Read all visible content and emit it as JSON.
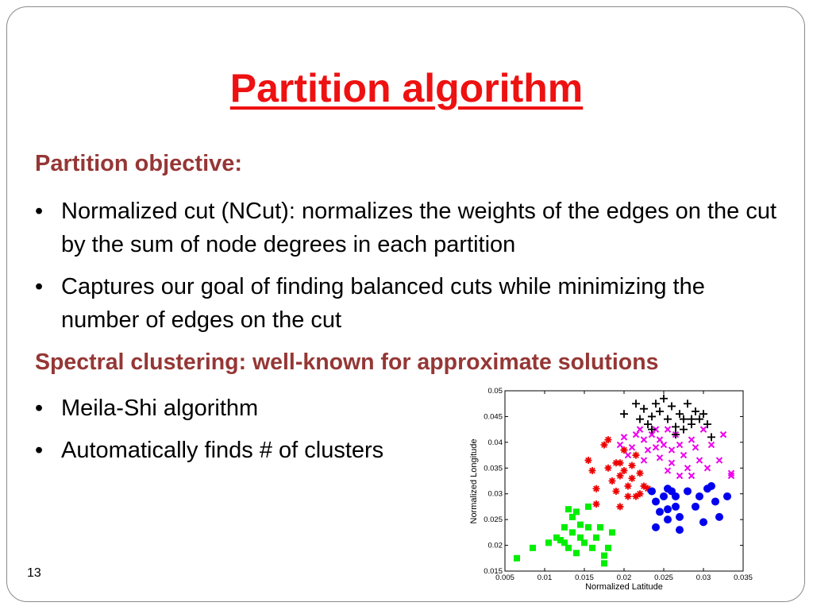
{
  "slide": {
    "title": "Partition algorithm",
    "page_number": "13"
  },
  "sections": [
    {
      "heading": "Partition objective:",
      "bullets": [
        "Normalized cut (NCut): normalizes the weights of the edges on the cut by the sum of node degrees in each partition",
        "Captures our goal of finding balanced cuts while minimizing the number of edges on the cut"
      ]
    },
    {
      "heading": "Spectral clustering: well-known for approximate solutions",
      "bullets": [
        "Meila-Shi algorithm",
        "Automatically finds # of clusters"
      ]
    }
  ],
  "chart_data": {
    "type": "scatter",
    "xlabel": "Normalized Latitude",
    "ylabel": "Normalized Longitude",
    "xlim": [
      0.005,
      0.035
    ],
    "ylim": [
      0.015,
      0.05
    ],
    "xticks": [
      "0.005",
      "0.01",
      "0.015",
      "0.02",
      "0.025",
      "0.03",
      "0.035"
    ],
    "yticks": [
      "0.015",
      "0.02",
      "0.025",
      "0.03",
      "0.035",
      "0.04",
      "0.045",
      "0.05"
    ],
    "series": [
      {
        "marker": "square",
        "color": "#00ee00",
        "points": [
          [
            0.0065,
            0.0175
          ],
          [
            0.0085,
            0.0195
          ],
          [
            0.0105,
            0.0205
          ],
          [
            0.0115,
            0.0215
          ],
          [
            0.012,
            0.021
          ],
          [
            0.0125,
            0.0235
          ],
          [
            0.0125,
            0.0205
          ],
          [
            0.013,
            0.0195
          ],
          [
            0.013,
            0.027
          ],
          [
            0.0135,
            0.0225
          ],
          [
            0.0135,
            0.0255
          ],
          [
            0.014,
            0.0185
          ],
          [
            0.0145,
            0.0215
          ],
          [
            0.014,
            0.0265
          ],
          [
            0.015,
            0.0205
          ],
          [
            0.0155,
            0.0235
          ],
          [
            0.016,
            0.0195
          ],
          [
            0.0165,
            0.0215
          ],
          [
            0.0155,
            0.0275
          ],
          [
            0.017,
            0.0235
          ],
          [
            0.0175,
            0.018
          ],
          [
            0.0175,
            0.0165
          ],
          [
            0.018,
            0.0195
          ],
          [
            0.0185,
            0.0225
          ],
          [
            0.0145,
            0.024
          ]
        ]
      },
      {
        "marker": "asterisk",
        "color": "#ee0000",
        "points": [
          [
            0.0155,
            0.0365
          ],
          [
            0.016,
            0.0345
          ],
          [
            0.0165,
            0.031
          ],
          [
            0.0165,
            0.028
          ],
          [
            0.0175,
            0.0395
          ],
          [
            0.018,
            0.0405
          ],
          [
            0.018,
            0.035
          ],
          [
            0.0185,
            0.0325
          ],
          [
            0.019,
            0.036
          ],
          [
            0.0195,
            0.0335
          ],
          [
            0.019,
            0.0305
          ],
          [
            0.0195,
            0.0275
          ],
          [
            0.02,
            0.0385
          ],
          [
            0.02,
            0.0345
          ],
          [
            0.0205,
            0.0315
          ],
          [
            0.021,
            0.0355
          ],
          [
            0.021,
            0.033
          ],
          [
            0.0215,
            0.0295
          ],
          [
            0.022,
            0.034
          ],
          [
            0.0225,
            0.0315
          ],
          [
            0.0215,
            0.0375
          ],
          [
            0.022,
            0.03
          ],
          [
            0.0205,
            0.0295
          ],
          [
            0.023,
            0.031
          ],
          [
            0.0195,
            0.036
          ]
        ]
      },
      {
        "marker": "x",
        "color": "#ee00ee",
        "points": [
          [
            0.0195,
            0.0395
          ],
          [
            0.02,
            0.041
          ],
          [
            0.0205,
            0.0375
          ],
          [
            0.021,
            0.039
          ],
          [
            0.022,
            0.0425
          ],
          [
            0.0225,
            0.0405
          ],
          [
            0.023,
            0.0385
          ],
          [
            0.0235,
            0.0415
          ],
          [
            0.024,
            0.039
          ],
          [
            0.0245,
            0.0405
          ],
          [
            0.0245,
            0.037
          ],
          [
            0.025,
            0.0395
          ],
          [
            0.0255,
            0.0425
          ],
          [
            0.026,
            0.0385
          ],
          [
            0.026,
            0.036
          ],
          [
            0.0265,
            0.0415
          ],
          [
            0.027,
            0.0395
          ],
          [
            0.0275,
            0.0375
          ],
          [
            0.028,
            0.035
          ],
          [
            0.0285,
            0.0405
          ],
          [
            0.029,
            0.039
          ],
          [
            0.0295,
            0.0365
          ],
          [
            0.03,
            0.0425
          ],
          [
            0.031,
            0.0395
          ],
          [
            0.0305,
            0.035
          ],
          [
            0.032,
            0.0365
          ],
          [
            0.0325,
            0.0415
          ],
          [
            0.0335,
            0.034
          ],
          [
            0.0335,
            0.0335
          ],
          [
            0.024,
            0.0425
          ],
          [
            0.0215,
            0.0415
          ],
          [
            0.0255,
            0.0345
          ],
          [
            0.027,
            0.0335
          ],
          [
            0.0285,
            0.0335
          ],
          [
            0.0225,
            0.0365
          ]
        ]
      },
      {
        "marker": "plus",
        "color": "#000000",
        "points": [
          [
            0.02,
            0.0455
          ],
          [
            0.0215,
            0.0475
          ],
          [
            0.022,
            0.0445
          ],
          [
            0.0225,
            0.0465
          ],
          [
            0.023,
            0.0435
          ],
          [
            0.0235,
            0.045
          ],
          [
            0.024,
            0.0475
          ],
          [
            0.0245,
            0.046
          ],
          [
            0.025,
            0.0485
          ],
          [
            0.0255,
            0.0445
          ],
          [
            0.026,
            0.047
          ],
          [
            0.0265,
            0.043
          ],
          [
            0.027,
            0.0455
          ],
          [
            0.0275,
            0.0445
          ],
          [
            0.028,
            0.0475
          ],
          [
            0.0285,
            0.0435
          ],
          [
            0.029,
            0.046
          ],
          [
            0.0295,
            0.0445
          ],
          [
            0.03,
            0.0455
          ],
          [
            0.0305,
            0.0435
          ],
          [
            0.031,
            0.041
          ],
          [
            0.0265,
            0.0415
          ],
          [
            0.0275,
            0.0425
          ],
          [
            0.0235,
            0.0425
          ],
          [
            0.0285,
            0.0445
          ]
        ]
      },
      {
        "marker": "circle",
        "color": "#0000ee",
        "points": [
          [
            0.0235,
            0.0305
          ],
          [
            0.024,
            0.0285
          ],
          [
            0.024,
            0.0235
          ],
          [
            0.0245,
            0.0265
          ],
          [
            0.025,
            0.0295
          ],
          [
            0.0255,
            0.025
          ],
          [
            0.0255,
            0.031
          ],
          [
            0.026,
            0.0305
          ],
          [
            0.0265,
            0.0275
          ],
          [
            0.027,
            0.0255
          ],
          [
            0.027,
            0.023
          ],
          [
            0.028,
            0.0305
          ],
          [
            0.029,
            0.0275
          ],
          [
            0.0295,
            0.0295
          ],
          [
            0.03,
            0.0245
          ],
          [
            0.031,
            0.0315
          ],
          [
            0.0315,
            0.0285
          ],
          [
            0.032,
            0.0255
          ],
          [
            0.033,
            0.0295
          ],
          [
            0.0255,
            0.027
          ],
          [
            0.0265,
            0.0295
          ],
          [
            0.0305,
            0.031
          ]
        ]
      }
    ]
  }
}
